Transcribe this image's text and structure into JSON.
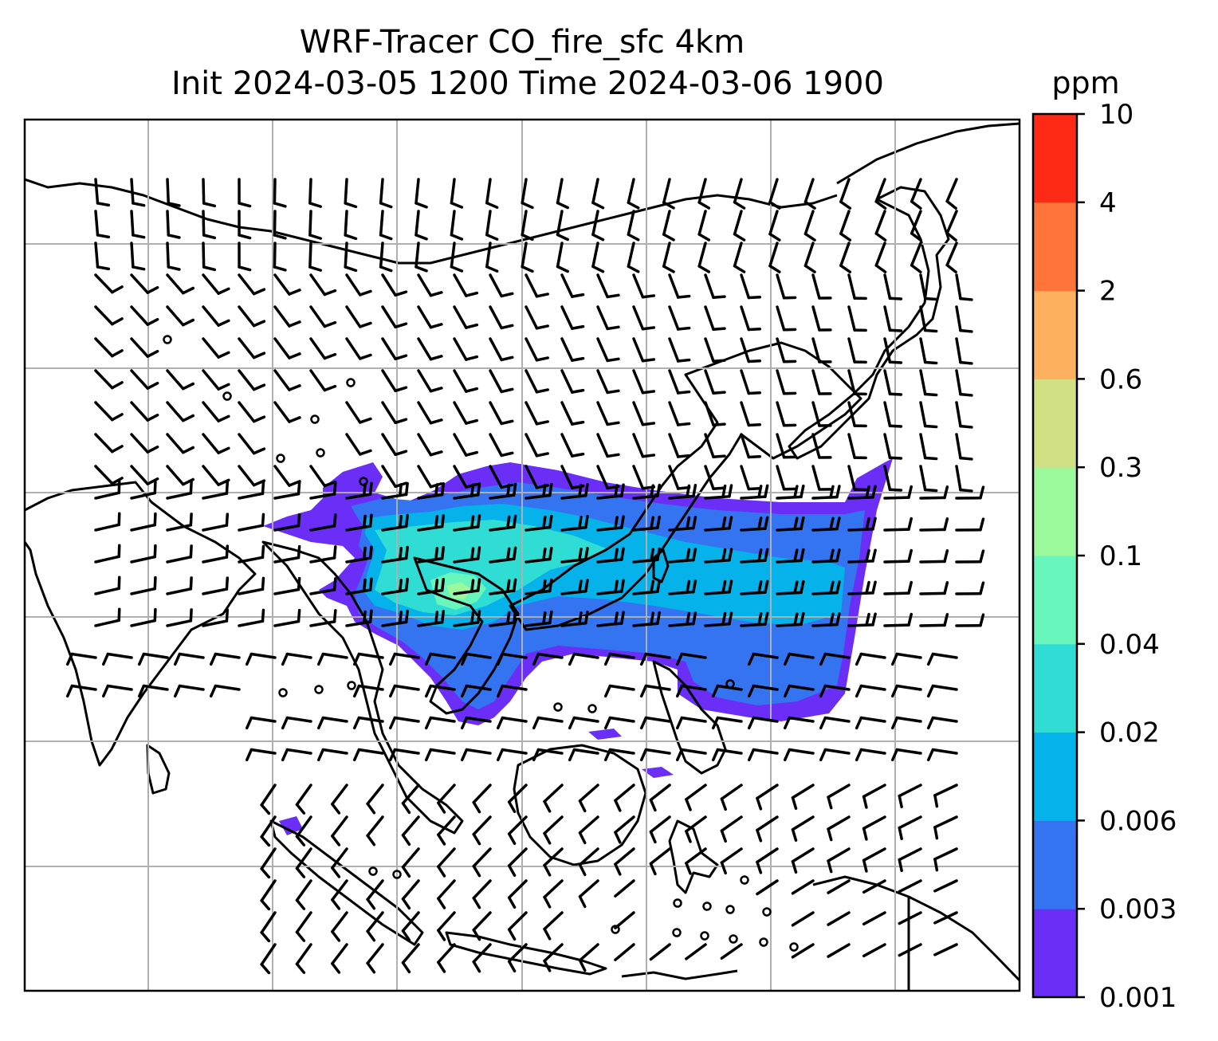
{
  "chart_data": {
    "type": "heatmap",
    "title_line1": "WRF-Tracer CO_fire_sfc 4km",
    "title_line2": "Init 2024-03-05 1200 Time 2024-03-06 1900",
    "colorbar": {
      "label": "ppm",
      "levels": [
        "0.001",
        "0.003",
        "0.006",
        "0.02",
        "0.04",
        "0.1",
        "0.3",
        "0.6",
        "2",
        "4",
        "10"
      ],
      "colors": [
        "#6a2ef7",
        "#3474f0",
        "#06b2ea",
        "#30ddd4",
        "#68f6bd",
        "#9bf89b",
        "#d1e085",
        "#fdb05e",
        "#ff7439",
        "#ff2a15"
      ]
    },
    "gridlines": true,
    "plume": {
      "description_level_bands": [
        "0.001-0.003",
        "0.003-0.006",
        "0.006-0.02",
        "0.02-0.04",
        "0.04-0.1"
      ]
    },
    "wind_barbs": true
  }
}
